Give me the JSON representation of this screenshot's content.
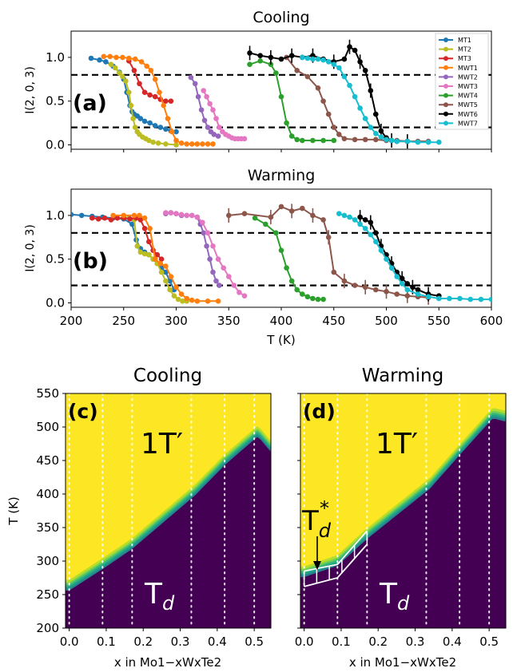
{
  "chart_data": [
    {
      "panel": "(a)",
      "type": "line",
      "title": "Cooling",
      "xlabel": "",
      "ylabel": "I(2, 0, 3)",
      "xlim": [
        200,
        600
      ],
      "ylim": [
        -0.05,
        1.3
      ],
      "yticks": [
        "0.0",
        "0.5",
        "1.0"
      ],
      "hlines": [
        0.8,
        0.2
      ],
      "legend_position": "top-right",
      "series": [
        {
          "name": "MT1",
          "color": "#1f77b4",
          "x": [
            219,
            227,
            233,
            240,
            246,
            250,
            253,
            256,
            258,
            260,
            263,
            266,
            270,
            275,
            280,
            285,
            290,
            295,
            300
          ],
          "y": [
            0.99,
            0.97,
            0.95,
            0.9,
            0.83,
            0.75,
            0.6,
            0.45,
            0.38,
            0.35,
            0.33,
            0.3,
            0.27,
            0.25,
            0.22,
            0.2,
            0.18,
            0.16,
            0.15
          ]
        },
        {
          "name": "MT2",
          "color": "#bcbd22",
          "x": [
            238,
            242,
            246,
            249,
            252,
            255,
            257,
            259,
            261,
            263,
            265,
            268,
            271,
            274,
            278,
            283,
            290,
            300
          ],
          "y": [
            0.92,
            0.88,
            0.82,
            0.78,
            0.73,
            0.6,
            0.45,
            0.3,
            0.2,
            0.15,
            0.12,
            0.09,
            0.07,
            0.05,
            0.03,
            0.02,
            0.01,
            0.0
          ]
        },
        {
          "name": "MT3",
          "color": "#d62728",
          "x": [
            255,
            260,
            265,
            270,
            275,
            280,
            285,
            290,
            295
          ],
          "y": [
            0.96,
            0.85,
            0.7,
            0.6,
            0.57,
            0.55,
            0.52,
            0.5,
            0.5
          ]
        },
        {
          "name": "MWT1",
          "color": "#ff7f0e",
          "x": [
            231,
            237,
            243,
            249,
            255,
            261,
            267,
            272,
            276,
            280,
            284,
            288,
            292,
            296,
            300,
            305,
            310,
            315,
            320,
            325,
            330,
            335
          ],
          "y": [
            1.01,
            1.01,
            1.0,
            1.0,
            0.99,
            0.98,
            0.95,
            0.9,
            0.85,
            0.75,
            0.6,
            0.45,
            0.3,
            0.15,
            0.05,
            0.02,
            0.01,
            0.01,
            0.01,
            0.01,
            0.01,
            0.01
          ]
        },
        {
          "name": "MWT2",
          "color": "#9467bd",
          "x": [
            314,
            318,
            321,
            324,
            327,
            330,
            333,
            336,
            340
          ],
          "y": [
            0.77,
            0.7,
            0.55,
            0.4,
            0.28,
            0.2,
            0.15,
            0.12,
            0.1
          ]
        },
        {
          "name": "MWT3",
          "color": "#e377c2",
          "x": [
            326,
            329,
            332,
            335,
            338,
            341,
            344,
            347,
            350,
            353,
            356,
            359,
            362,
            365
          ],
          "y": [
            0.62,
            0.55,
            0.47,
            0.4,
            0.3,
            0.2,
            0.15,
            0.12,
            0.1,
            0.08,
            0.07,
            0.07,
            0.07,
            0.07
          ]
        },
        {
          "name": "MWT4",
          "color": "#2ca02c",
          "x": [
            370,
            380,
            390,
            395,
            400,
            405,
            410,
            415,
            420,
            430,
            440,
            450
          ],
          "y": [
            0.92,
            0.96,
            0.92,
            0.82,
            0.55,
            0.25,
            0.1,
            0.06,
            0.05,
            0.05,
            0.05,
            0.05
          ]
        },
        {
          "name": "MWT5",
          "color": "#8c564b",
          "x": [
            405,
            415,
            425,
            435,
            440,
            445,
            450,
            455,
            460,
            470,
            480,
            490,
            500,
            510,
            520,
            530,
            540
          ],
          "y": [
            1.0,
            0.85,
            0.78,
            0.65,
            0.5,
            0.35,
            0.2,
            0.12,
            0.07,
            0.06,
            0.06,
            0.06,
            0.05,
            0.05,
            0.04,
            0.04,
            0.04
          ]
        },
        {
          "name": "MWT6",
          "color": "#000000",
          "x": [
            370,
            380,
            390,
            400,
            410,
            420,
            430,
            440,
            450,
            460,
            465,
            470,
            475,
            480,
            485,
            490,
            495,
            500,
            505,
            510,
            520
          ],
          "y": [
            1.05,
            1.02,
            1.0,
            0.98,
            1.02,
            1.0,
            1.02,
            0.98,
            0.95,
            0.98,
            1.12,
            1.08,
            0.95,
            0.85,
            0.62,
            0.35,
            0.16,
            0.08,
            0.05,
            0.04,
            0.04
          ]
        },
        {
          "name": "MWT7",
          "color": "#17becf",
          "x": [
            420,
            425,
            430,
            435,
            440,
            445,
            450,
            455,
            460,
            465,
            470,
            475,
            480,
            485,
            490,
            495,
            500,
            505,
            510,
            520,
            530,
            540,
            550
          ],
          "y": [
            1.0,
            0.99,
            0.98,
            0.98,
            0.97,
            0.95,
            0.92,
            0.88,
            0.78,
            0.68,
            0.55,
            0.42,
            0.3,
            0.2,
            0.13,
            0.09,
            0.06,
            0.05,
            0.04,
            0.04,
            0.03,
            0.03,
            0.03
          ]
        }
      ]
    },
    {
      "panel": "(b)",
      "type": "line",
      "title": "Warming",
      "xlabel": "T (K)",
      "ylabel": "I(2, 0, 3)",
      "xlim": [
        200,
        600
      ],
      "ylim": [
        -0.05,
        1.3
      ],
      "xticks": [
        "200",
        "250",
        "300",
        "350",
        "400",
        "450",
        "500",
        "550",
        "600"
      ],
      "yticks": [
        "0.0",
        "0.5",
        "1.0"
      ],
      "hlines": [
        0.8,
        0.2
      ],
      "series": [
        {
          "name": "MT1",
          "color": "#1f77b4",
          "x": [
            200,
            210,
            220,
            230,
            240,
            250,
            258,
            262,
            266,
            270,
            274,
            278,
            282,
            286,
            290,
            294,
            298
          ],
          "y": [
            1.01,
            1.0,
            0.99,
            0.98,
            0.97,
            0.96,
            0.9,
            0.72,
            0.62,
            0.58,
            0.55,
            0.5,
            0.45,
            0.4,
            0.35,
            0.25,
            0.15
          ]
        },
        {
          "name": "MT2",
          "color": "#bcbd22",
          "x": [
            250,
            255,
            260,
            263,
            266,
            270,
            274,
            278,
            282,
            286,
            290,
            294,
            298,
            302,
            306,
            310
          ],
          "y": [
            0.98,
            0.97,
            0.95,
            0.65,
            0.58,
            0.56,
            0.55,
            0.5,
            0.45,
            0.35,
            0.25,
            0.15,
            0.08,
            0.04,
            0.02,
            0.02
          ]
        },
        {
          "name": "MT3",
          "color": "#d62728",
          "x": [
            220,
            226,
            232,
            238,
            244,
            250,
            256,
            262,
            266,
            270,
            274,
            278,
            282,
            286
          ],
          "y": [
            0.97,
            0.96,
            0.97,
            0.95,
            0.97,
            0.97,
            0.96,
            0.97,
            0.95,
            0.85,
            0.7,
            0.6,
            0.55,
            0.5
          ]
        },
        {
          "name": "MWT1",
          "color": "#ff7f0e",
          "x": [
            240,
            250,
            260,
            265,
            270,
            275,
            280,
            285,
            290,
            295,
            300,
            305,
            310,
            315,
            320,
            330,
            340
          ],
          "y": [
            1.0,
            1.0,
            1.0,
            1.0,
            0.97,
            0.85,
            0.5,
            0.45,
            0.42,
            0.3,
            0.18,
            0.1,
            0.05,
            0.03,
            0.02,
            0.02,
            0.02
          ]
        },
        {
          "name": "MWT2",
          "color": "#9467bd",
          "x": [
            290,
            295,
            300,
            305,
            310,
            315,
            320,
            323,
            326,
            329,
            332,
            335,
            338,
            341
          ],
          "y": [
            1.02,
            1.03,
            1.02,
            1.0,
            1.0,
            1.0,
            0.98,
            0.9,
            0.8,
            0.65,
            0.5,
            0.35,
            0.25,
            0.2
          ]
        },
        {
          "name": "MWT3",
          "color": "#e377c2",
          "x": [
            290,
            295,
            300,
            305,
            310,
            315,
            320,
            325,
            330,
            335,
            340,
            345,
            350,
            355,
            360,
            365
          ],
          "y": [
            1.03,
            1.03,
            1.02,
            1.01,
            1.0,
            1.0,
            0.98,
            0.92,
            0.8,
            0.65,
            0.5,
            0.4,
            0.3,
            0.2,
            0.12,
            0.08
          ]
        },
        {
          "name": "MWT4",
          "color": "#2ca02c",
          "x": [
            375,
            385,
            395,
            400,
            405,
            410,
            415,
            420,
            425,
            430,
            435,
            440
          ],
          "y": [
            0.97,
            0.9,
            0.8,
            0.6,
            0.4,
            0.25,
            0.15,
            0.1,
            0.07,
            0.05,
            0.04,
            0.04
          ]
        },
        {
          "name": "MWT5",
          "color": "#8c564b",
          "x": [
            350,
            365,
            390,
            400,
            410,
            420,
            430,
            440,
            445,
            450,
            460,
            470,
            480,
            490,
            500,
            510,
            520,
            530,
            540
          ],
          "y": [
            1.0,
            1.02,
            0.98,
            1.1,
            1.05,
            1.08,
            1.0,
            0.95,
            0.75,
            0.35,
            0.25,
            0.2,
            0.18,
            0.15,
            0.13,
            0.1,
            0.08,
            0.07,
            0.06
          ]
        },
        {
          "name": "MWT6",
          "color": "#000000",
          "x": [
            475,
            480,
            485,
            490,
            495,
            500,
            505,
            510,
            515,
            520,
            525,
            530,
            540,
            550
          ],
          "y": [
            0.98,
            0.95,
            0.92,
            0.8,
            0.65,
            0.55,
            0.45,
            0.35,
            0.28,
            0.22,
            0.18,
            0.15,
            0.1,
            0.08
          ]
        },
        {
          "name": "MWT7",
          "color": "#17becf",
          "x": [
            455,
            460,
            465,
            470,
            475,
            480,
            485,
            490,
            495,
            500,
            505,
            510,
            515,
            520,
            530,
            540,
            550,
            560,
            570,
            580,
            590,
            600
          ],
          "y": [
            1.02,
            1.0,
            0.98,
            0.95,
            0.9,
            0.85,
            0.78,
            0.7,
            0.6,
            0.5,
            0.4,
            0.3,
            0.22,
            0.15,
            0.1,
            0.07,
            0.05,
            0.05,
            0.05,
            0.04,
            0.04,
            0.04
          ]
        }
      ]
    },
    {
      "panel": "(c)",
      "type": "heatmap",
      "title": "Cooling",
      "xlabel": "x in Mo1−xWxTe2",
      "ylabel": "T (K)",
      "xlim": [
        -0.01,
        0.545
      ],
      "ylim": [
        200,
        550
      ],
      "xticks": [
        "0.0",
        "0.1",
        "0.2",
        "0.3",
        "0.4",
        "0.5"
      ],
      "yticks": [
        "200",
        "250",
        "300",
        "350",
        "400",
        "450",
        "500",
        "550"
      ],
      "colormap": {
        "low": "#440154",
        "high": "#fde725"
      },
      "boundary": {
        "x": [
          0.0,
          0.09,
          0.17,
          0.34,
          0.42,
          0.51,
          0.545
        ],
        "T": [
          258,
          290,
          320,
          400,
          445,
          488,
          465
        ]
      },
      "sample_compositions": [
        0.0,
        0.09,
        0.17,
        0.33,
        0.42,
        0.5
      ],
      "annotations": {
        "high_phase": "1T′",
        "low_phase": "T",
        "low_phase_sub": "d"
      }
    },
    {
      "panel": "(d)",
      "type": "heatmap",
      "title": "Warming",
      "xlabel": "x in Mo1−xWxTe2",
      "ylabel": "",
      "xlim": [
        -0.01,
        0.545
      ],
      "ylim": [
        200,
        550
      ],
      "xticks": [
        "0.0",
        "0.1",
        "0.2",
        "0.3",
        "0.4",
        "0.5"
      ],
      "yticks": [],
      "colormap": {
        "low": "#440154",
        "high": "#fde725"
      },
      "boundary": {
        "x": [
          0.0,
          0.09,
          0.17,
          0.34,
          0.42,
          0.51,
          0.545
        ],
        "T": [
          278,
          295,
          335,
          410,
          460,
          515,
          510
        ]
      },
      "sample_compositions": [
        0.0,
        0.09,
        0.17,
        0.33,
        0.42,
        0.5
      ],
      "td_star_region": {
        "x": [
          0.0,
          0.09,
          0.17
        ],
        "T_low": [
          262,
          275,
          325
        ],
        "T_high": [
          285,
          295,
          345
        ]
      },
      "annotations": {
        "high_phase": "1T′",
        "low_phase": "T",
        "low_phase_sub": "d",
        "intermediate": "T",
        "intermediate_sub": "d",
        "intermediate_sup": "*"
      }
    }
  ]
}
